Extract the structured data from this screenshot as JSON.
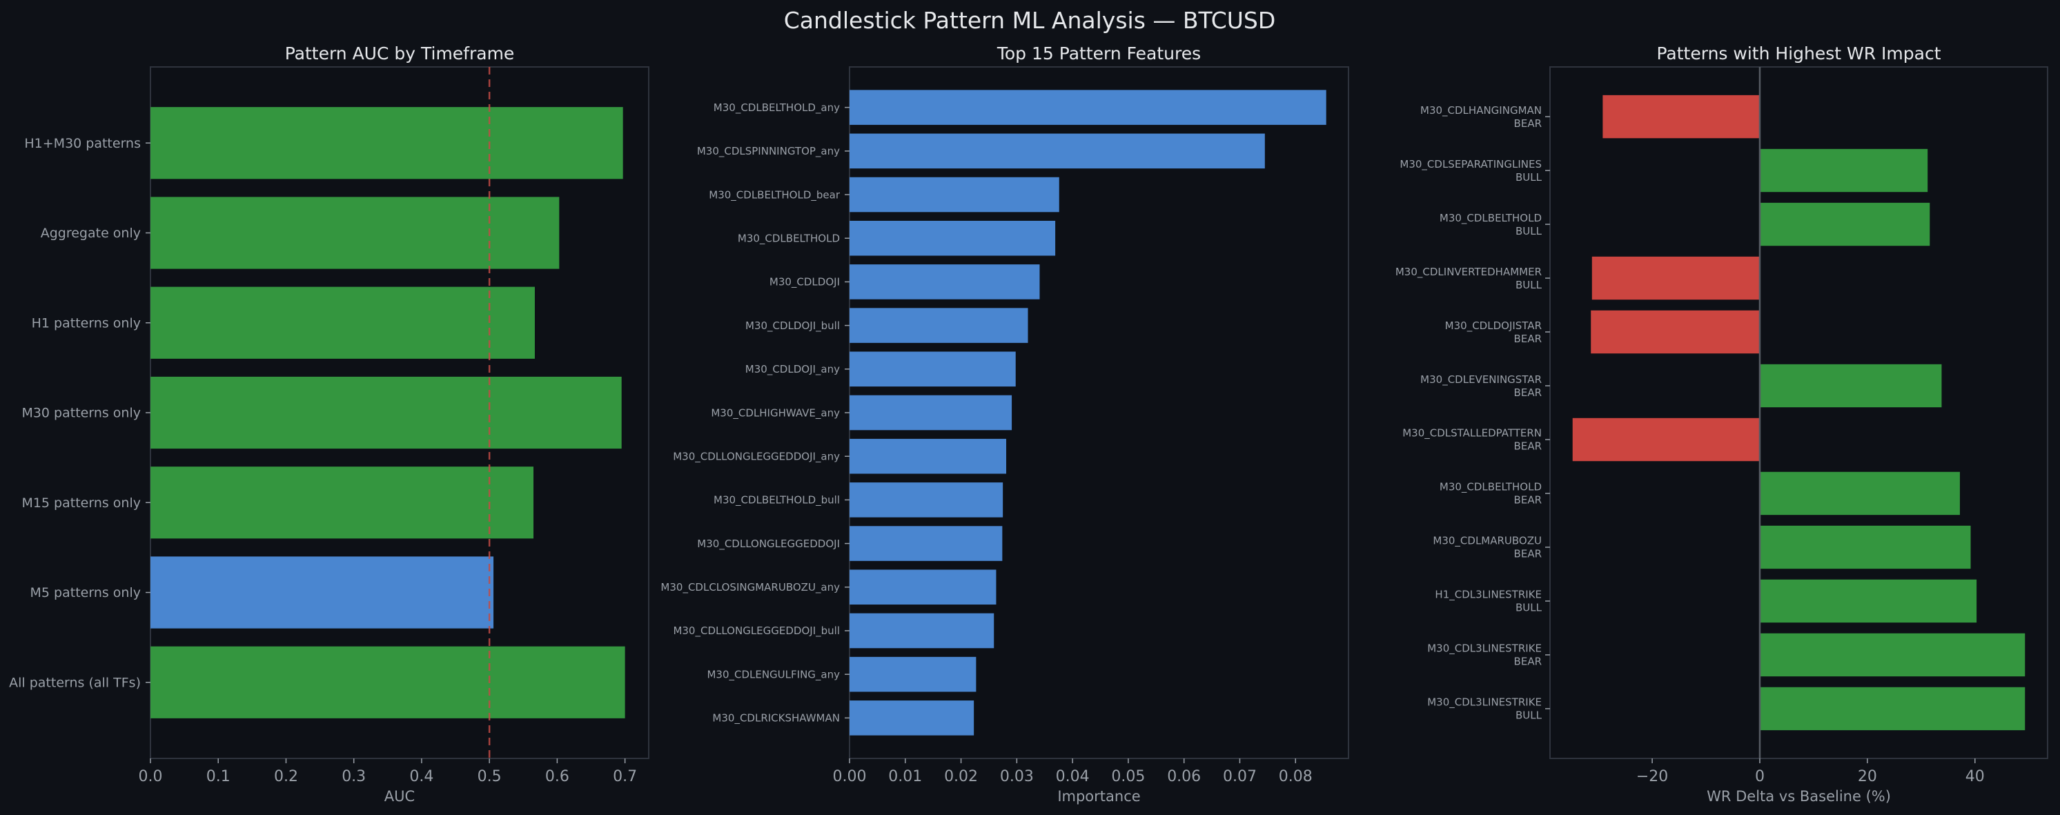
{
  "suptitle": "Candlestick Pattern ML Analysis — BTCUSD",
  "colors": {
    "background": "#0e1117",
    "plot_background": "#0d1016",
    "frame": "#2e333d",
    "text": "#e6e8eb",
    "tick_text": "#9aa0a8",
    "green": "#34963f",
    "blue": "#4a86d0",
    "red": "#cc4540",
    "reference_line": "#c44b45",
    "zero_line": "#555a63"
  },
  "chart_data": [
    {
      "type": "bar",
      "orientation": "horizontal",
      "title": "Pattern AUC by Timeframe",
      "xlabel": "AUC",
      "ylabel": "",
      "xlim": [
        0,
        0.735
      ],
      "xticks": [
        0.0,
        0.1,
        0.2,
        0.3,
        0.4,
        0.5,
        0.6,
        0.7
      ],
      "xtick_labels": [
        "0.0",
        "0.1",
        "0.2",
        "0.3",
        "0.4",
        "0.5",
        "0.6",
        "0.7"
      ],
      "reference_line": {
        "x": 0.5,
        "style": "dashed"
      },
      "categories": [
        "H1+M30 patterns",
        "Aggregate only",
        "H1 patterns only",
        "M30 patterns only",
        "M15 patterns only",
        "M5 patterns only",
        "All patterns (all TFs)"
      ],
      "values": [
        0.697,
        0.603,
        0.567,
        0.695,
        0.565,
        0.506,
        0.7
      ],
      "bar_colors": [
        "green",
        "green",
        "green",
        "green",
        "green",
        "blue",
        "green"
      ]
    },
    {
      "type": "bar",
      "orientation": "horizontal",
      "title": "Top 15 Pattern Features",
      "xlabel": "Importance",
      "ylabel": "",
      "xlim": [
        0,
        0.0895
      ],
      "xticks": [
        0.0,
        0.01,
        0.02,
        0.03,
        0.04,
        0.05,
        0.06,
        0.07,
        0.08
      ],
      "xtick_labels": [
        "0.00",
        "0.01",
        "0.02",
        "0.03",
        "0.04",
        "0.05",
        "0.06",
        "0.07",
        "0.08"
      ],
      "categories": [
        "M30_CDLBELTHOLD_any",
        "M30_CDLSPINNINGTOP_any",
        "M30_CDLBELTHOLD_bear",
        "M30_CDLBELTHOLD",
        "M30_CDLDOJI",
        "M30_CDLDOJI_bull",
        "M30_CDLDOJI_any",
        "M30_CDLHIGHWAVE_any",
        "M30_CDLLONGLEGGEDDOJI_any",
        "M30_CDLBELTHOLD_bull",
        "M30_CDLLONGLEGGEDDOJI",
        "M30_CDLCLOSINGMARUBOZU_any",
        "M30_CDLLONGLEGGEDDOJI_bull",
        "M30_CDLENGULFING_any",
        "M30_CDLRICKSHAWMAN"
      ],
      "values": [
        0.0855,
        0.0745,
        0.0376,
        0.0369,
        0.0341,
        0.032,
        0.0298,
        0.0291,
        0.0281,
        0.0275,
        0.0274,
        0.0263,
        0.0259,
        0.0227,
        0.0223
      ],
      "bar_colors": [
        "blue",
        "blue",
        "blue",
        "blue",
        "blue",
        "blue",
        "blue",
        "blue",
        "blue",
        "blue",
        "blue",
        "blue",
        "blue",
        "blue",
        "blue"
      ]
    },
    {
      "type": "bar",
      "orientation": "horizontal",
      "title": "Patterns with Highest WR Impact",
      "xlabel": "WR Delta vs Baseline (%)",
      "ylabel": "",
      "xlim": [
        -39,
        53.5
      ],
      "xticks": [
        -20,
        0,
        20,
        40
      ],
      "xtick_labels": [
        "−20",
        "0",
        "20",
        "40"
      ],
      "categories": [
        [
          "M30_CDLHANGINGMAN",
          "BEAR"
        ],
        [
          "M30_CDLSEPARATINGLINES",
          "BULL"
        ],
        [
          "M30_CDLBELTHOLD",
          "BULL"
        ],
        [
          "M30_CDLINVERTEDHAMMER",
          "BULL"
        ],
        [
          "M30_CDLDOJISTAR",
          "BEAR"
        ],
        [
          "M30_CDLEVENINGSTAR",
          "BEAR"
        ],
        [
          "M30_CDLSTALLEDPATTERN",
          "BEAR"
        ],
        [
          "M30_CDLBELTHOLD",
          "BEAR"
        ],
        [
          "M30_CDLMARUBOZU",
          "BEAR"
        ],
        [
          "H1_CDL3LINESTRIKE",
          "BULL"
        ],
        [
          "M30_CDL3LINESTRIKE",
          "BEAR"
        ],
        [
          "M30_CDL3LINESTRIKE",
          "BULL"
        ]
      ],
      "values": [
        -29.2,
        31.2,
        31.6,
        -31.2,
        -31.4,
        33.8,
        -34.8,
        37.2,
        39.2,
        40.3,
        49.3,
        49.3
      ],
      "bar_colors": [
        "red",
        "green",
        "green",
        "red",
        "red",
        "green",
        "red",
        "green",
        "green",
        "green",
        "green",
        "green"
      ]
    }
  ]
}
